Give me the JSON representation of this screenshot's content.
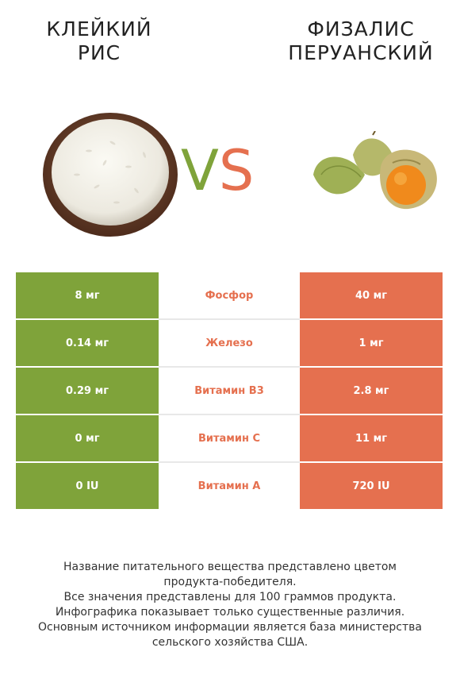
{
  "left_product": {
    "name_line1": "КЛЕЙКИЙ",
    "name_line2": "РИС"
  },
  "right_product": {
    "name_line1": "ФИЗАЛИС",
    "name_line2": "ПЕРУАНСКИЙ"
  },
  "vs": {
    "v": "V",
    "s": "S"
  },
  "colors": {
    "left": "#7fa33a",
    "right": "#e5704f"
  },
  "rows": [
    {
      "left": "8 мг",
      "nutrient": "Фосфор",
      "right": "40 мг"
    },
    {
      "left": "0.14 мг",
      "nutrient": "Железо",
      "right": "1 мг"
    },
    {
      "left": "0.29 мг",
      "nutrient": "Витамин B3",
      "right": "2.8 мг"
    },
    {
      "left": "0 мг",
      "nutrient": "Витамин C",
      "right": "11 мг"
    },
    {
      "left": "0 IU",
      "nutrient": "Витамин A",
      "right": "720 IU"
    }
  ],
  "notes": {
    "line1": "Название питательного вещества представлено цветом",
    "line2": "продукта-победителя.",
    "line3": "Все значения представлены для 100 граммов продукта.",
    "line4": "Инфографика показывает только существенные различия.",
    "line5": "Основным источником информации является база министерства",
    "line6": "сельского хозяйства США."
  }
}
